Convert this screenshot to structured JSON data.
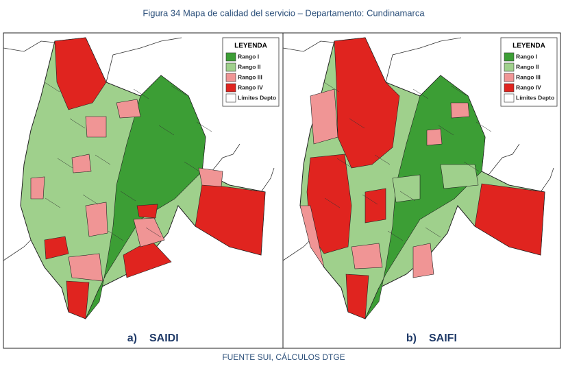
{
  "title": "Figura 34 Mapa de calidad del servicio – Departamento: Cundinamarca",
  "panels": [
    {
      "label": "a)",
      "name": "SAIDI",
      "legend": {
        "title": "LEYENDA",
        "items": [
          {
            "label": "Rango I",
            "color": "#3c9e35"
          },
          {
            "label": "Rango II",
            "color": "#9fd08c"
          },
          {
            "label": "Rango III",
            "color": "#f09595"
          },
          {
            "label": "Rango IV",
            "color": "#e0241f"
          },
          {
            "label": "Límites Depto",
            "color": "#ffffff"
          }
        ]
      }
    },
    {
      "label": "b)",
      "name": "SAIFI",
      "legend": {
        "title": "LEYENDA",
        "items": [
          {
            "label": "Rango I",
            "color": "#3c9e35"
          },
          {
            "label": "Rango II",
            "color": "#9fd08c"
          },
          {
            "label": "Rango III",
            "color": "#f09595"
          },
          {
            "label": "Rango IV",
            "color": "#e0241f"
          },
          {
            "label": "Límites Depto",
            "color": "#ffffff"
          }
        ]
      }
    }
  ],
  "source": "FUENTE SUI, CÁLCULOS DTGE"
}
